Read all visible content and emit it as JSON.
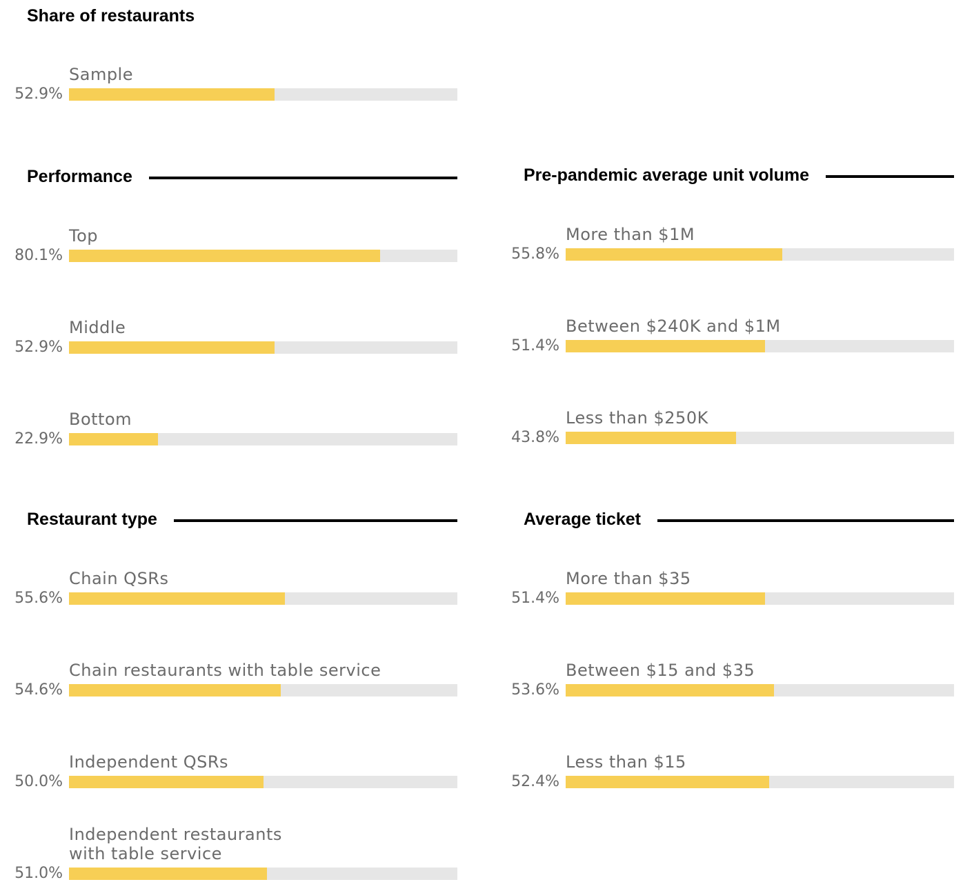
{
  "chart_data": {
    "type": "bar",
    "unit": "%",
    "xlim": [
      0,
      100
    ],
    "groups": [
      {
        "key": "overall",
        "title": "Share of restaurants",
        "items": [
          {
            "label": "Sample",
            "value": 52.9,
            "text": "52.9%"
          }
        ]
      },
      {
        "key": "performance",
        "title": "Performance",
        "items": [
          {
            "label": "Top",
            "value": 80.1,
            "text": "80.1%"
          },
          {
            "label": "Middle",
            "value": 52.9,
            "text": "52.9%"
          },
          {
            "label": "Bottom",
            "value": 22.9,
            "text": "22.9%"
          }
        ]
      },
      {
        "key": "auv",
        "title": "Pre-pandemic average unit volume",
        "items": [
          {
            "label": "More than $1M",
            "value": 55.8,
            "text": "55.8%"
          },
          {
            "label": "Between $240K and $1M",
            "value": 51.4,
            "text": "51.4%"
          },
          {
            "label": "Less than $250K",
            "value": 43.8,
            "text": "43.8%"
          }
        ]
      },
      {
        "key": "type",
        "title": "Restaurant type",
        "items": [
          {
            "label": "Chain QSRs",
            "value": 55.6,
            "text": "55.6%"
          },
          {
            "label": "Chain restaurants with table service",
            "value": 54.6,
            "text": "54.6%"
          },
          {
            "label": "Independent QSRs",
            "value": 50.0,
            "text": "50.0%"
          },
          {
            "label": "Independent restaurants\nwith table service",
            "value": 51.0,
            "text": "51.0%"
          }
        ]
      },
      {
        "key": "ticket",
        "title": "Average ticket",
        "items": [
          {
            "label": "More than $35",
            "value": 51.4,
            "text": "51.4%"
          },
          {
            "label": "Between $15 and $35",
            "value": 53.6,
            "text": "53.6%"
          },
          {
            "label": "Less than $15",
            "value": 52.4,
            "text": "52.4%"
          }
        ]
      }
    ],
    "colors": {
      "bar": "#f7cf55",
      "track": "#e6e6e6",
      "text": "#6b6b6b",
      "heading": "#000000"
    }
  }
}
